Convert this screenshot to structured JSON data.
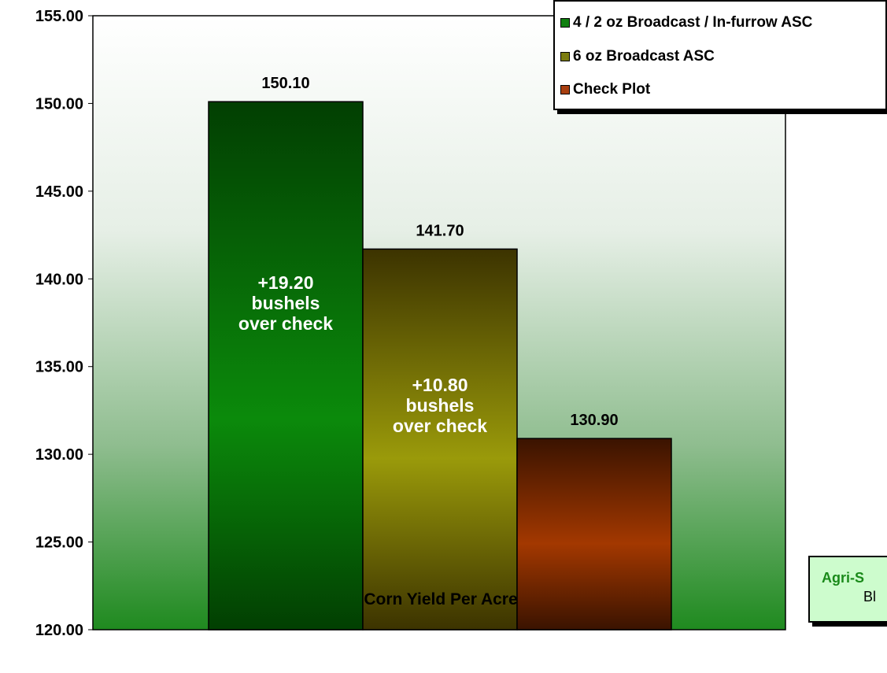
{
  "chart_data": {
    "type": "bar",
    "categories": [
      "4 / 2 oz Broadcast / In-furrow ASC",
      "6 oz Broadcast ASC",
      "Check Plot"
    ],
    "values": [
      150.1,
      141.7,
      130.9
    ],
    "value_labels": [
      "150.10",
      "141.70",
      "130.90"
    ],
    "inner_labels": [
      [
        "+19.20",
        "bushels",
        "over check"
      ],
      [
        "+10.80",
        "bushels",
        "over check"
      ],
      []
    ],
    "xlabel": "Corn Yield Per Acre",
    "ylabel": "",
    "ylim": [
      120,
      155
    ],
    "yticks": [
      "120.00",
      "125.00",
      "130.00",
      "135.00",
      "140.00",
      "145.00",
      "150.00",
      "155.00"
    ],
    "grid": false,
    "legend_position": "top-right",
    "colors": {
      "series": [
        {
          "light": "#0b8a0b",
          "dark": "#023f02"
        },
        {
          "light": "#9a9a0a",
          "dark": "#3c3300"
        },
        {
          "light": "#a33800",
          "dark": "#3a1300"
        }
      ],
      "plot_background_top": "#ffffff",
      "plot_background_bottom": "#1f8a1f"
    }
  },
  "legend": {
    "items": [
      {
        "label": "4 / 2 oz Broadcast / In-furrow ASC",
        "color": "#0f7f0f"
      },
      {
        "label": "6 oz Broadcast ASC",
        "color": "#7b7c10"
      },
      {
        "label": "Check Plot",
        "color": "#a83f10"
      }
    ]
  },
  "note": {
    "line1": "Agri-S",
    "line2": "Bl"
  }
}
